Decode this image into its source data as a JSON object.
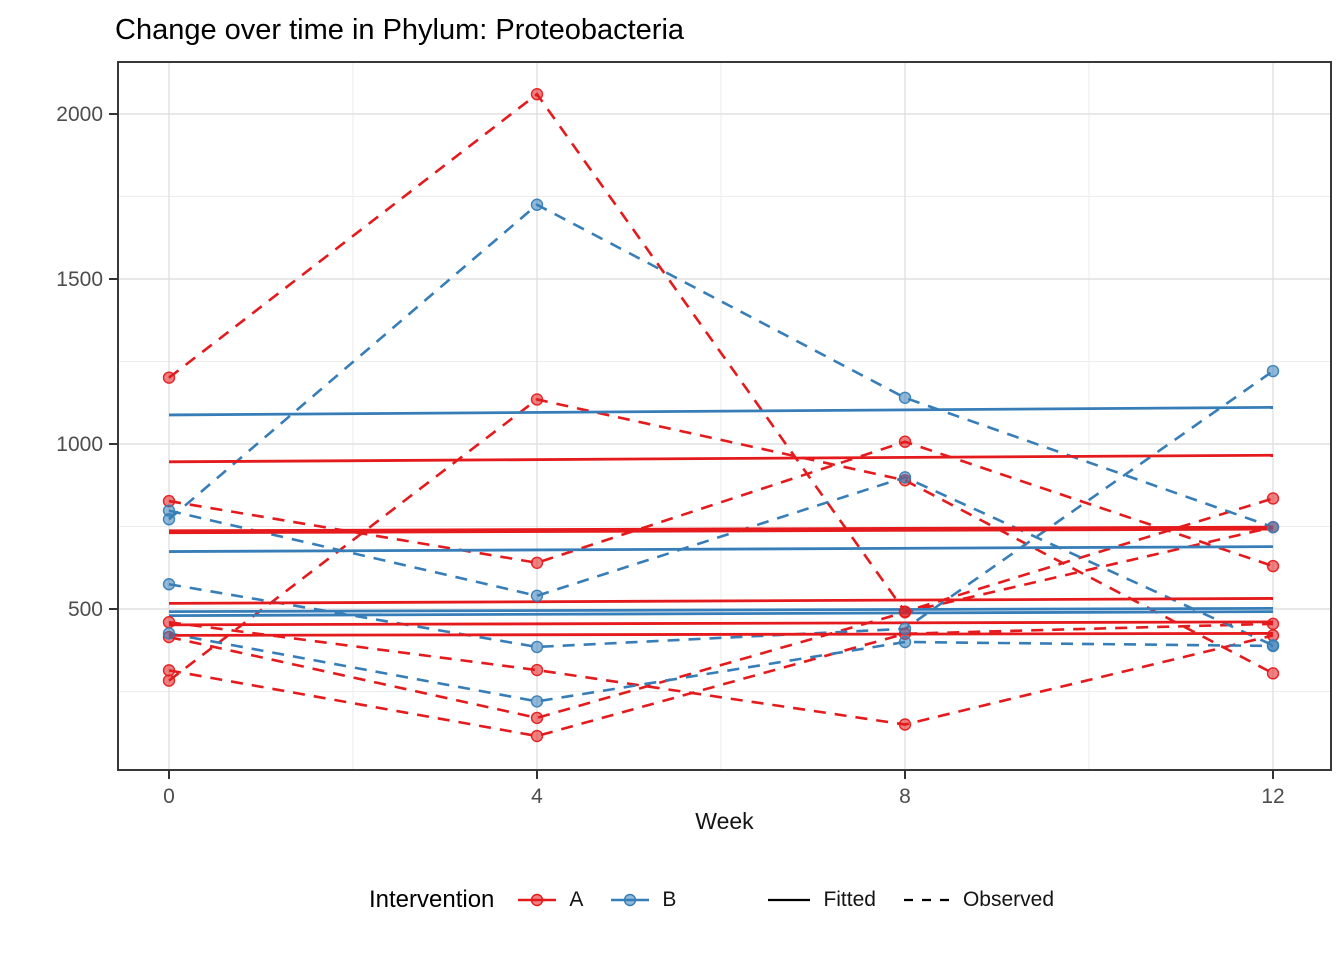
{
  "title": "Change over time in Phylum: Proteobacteria",
  "chart_data": {
    "type": "line",
    "title": "Change over time in Phylum: Proteobacteria",
    "xlabel": "Week",
    "ylabel": "",
    "x_ticks": [
      0,
      4,
      8,
      12
    ],
    "x_minor": [
      2,
      6,
      10
    ],
    "y_ticks": [
      500,
      1000,
      1500,
      2000
    ],
    "y_minor": [
      250,
      750,
      1250,
      1750
    ],
    "xlim": [
      -0.55,
      12.63
    ],
    "ylim": [
      10,
      2160
    ],
    "grid": "on",
    "legend_position": "bottom",
    "weeks": [
      0,
      4,
      8,
      12
    ],
    "groups": [
      {
        "name": "A",
        "color": "#E41A1C"
      },
      {
        "name": "B",
        "color": "#377EB8"
      }
    ],
    "legend": {
      "title": "Intervention",
      "fitted_label": "Fitted",
      "observed_label": "Observed",
      "linetype_color": "#000000"
    },
    "line_styles": {
      "fitted": "solid",
      "observed": "dashed"
    },
    "subjects": [
      {
        "group": "A",
        "observed": [
          1201,
          2060,
          492,
          835
        ],
        "fitted": [
          946,
          966
        ]
      },
      {
        "group": "A",
        "observed": [
          827,
          640,
          1007,
          630
        ],
        "fitted": [
          737,
          748
        ]
      },
      {
        "group": "A",
        "observed": [
          283,
          1135,
          890,
          305
        ],
        "fitted": [
          731,
          742
        ]
      },
      {
        "group": "A",
        "observed": [
          460,
          315,
          150,
          420
        ],
        "fitted": [
          517,
          532
        ]
      },
      {
        "group": "A",
        "observed": [
          415,
          170,
          490,
          748
        ],
        "fitted": [
          452,
          461
        ]
      },
      {
        "group": "A",
        "observed": [
          314,
          115,
          425,
          455
        ],
        "fitted": [
          420,
          426
        ]
      },
      {
        "group": "B",
        "observed": [
          772,
          1725,
          1140,
          748
        ],
        "fitted": [
          1088,
          1111
        ]
      },
      {
        "group": "B",
        "observed": [
          798,
          540,
          899,
          390
        ],
        "fitted": [
          674,
          689
        ]
      },
      {
        "group": "B",
        "observed": [
          575,
          385,
          440,
          1221
        ],
        "fitted": [
          492,
          502
        ]
      },
      {
        "group": "B",
        "observed": [
          426,
          220,
          400,
          388
        ],
        "fitted": [
          480,
          492
        ]
      }
    ],
    "colors": {
      "grid_major": "#E0E0E0",
      "grid_minor": "#EDEDED",
      "panel_border": "#383838",
      "tick": "#333333",
      "tick_label": "#4D4D4D"
    }
  }
}
